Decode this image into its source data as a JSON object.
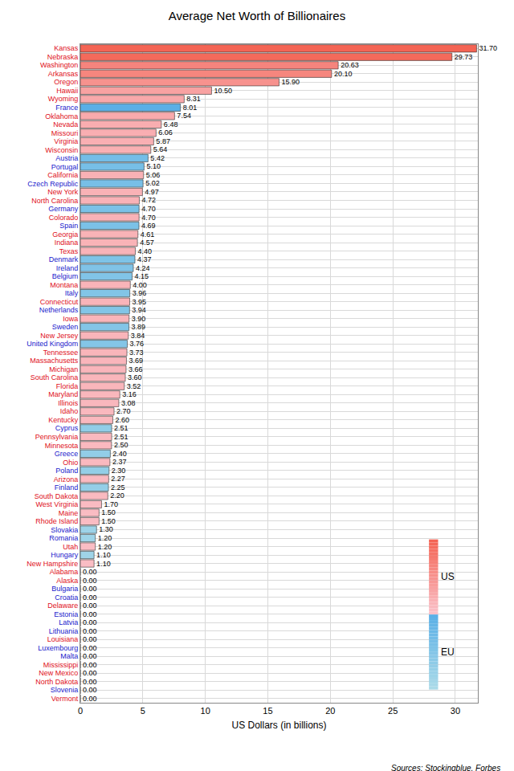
{
  "chart_data": {
    "type": "bar",
    "orientation": "horizontal",
    "title": "Average Net Worth of Billionaires",
    "x_label": "US Dollars (in billions)",
    "caption": "Sources: Stockingblue, Forbes",
    "categories": [
      "Kansas",
      "Nebraska",
      "Washington",
      "Arkansas",
      "Oregon",
      "Hawaii",
      "Wyoming",
      "France",
      "Oklahoma",
      "Nevada",
      "Missouri",
      "Virginia",
      "Wisconsin",
      "Austria",
      "Portugal",
      "California",
      "Czech Republic",
      "New York",
      "North Carolina",
      "Germany",
      "Colorado",
      "Spain",
      "Georgia",
      "Indiana",
      "Texas",
      "Denmark",
      "Ireland",
      "Belgium",
      "Montana",
      "Italy",
      "Connecticut",
      "Netherlands",
      "Iowa",
      "Sweden",
      "New Jersey",
      "United Kingdom",
      "Tennessee",
      "Massachusetts",
      "Michigan",
      "South Carolina",
      "Florida",
      "Maryland",
      "Illinois",
      "Idaho",
      "Kentucky",
      "Cyprus",
      "Pennsylvania",
      "Minnesota",
      "Greece",
      "Ohio",
      "Poland",
      "Arizona",
      "Finland",
      "South Dakota",
      "West Virginia",
      "Maine",
      "Rhode Island",
      "Slovakia",
      "Romania",
      "Utah",
      "Hungary",
      "New Hampshire",
      "Alabama",
      "Alaska",
      "Bulgaria",
      "Croatia",
      "Delaware",
      "Estonia",
      "Latvia",
      "Lithuania",
      "Louisiana",
      "Luxembourg",
      "Malta",
      "Mississippi",
      "New Mexico",
      "North Dakota",
      "Slovenia",
      "Vermont"
    ],
    "series": [
      {
        "name": "US",
        "values": [
          31.7,
          29.73,
          20.63,
          20.1,
          15.9,
          10.5,
          8.31,
          null,
          7.54,
          6.48,
          6.06,
          5.87,
          5.64,
          null,
          null,
          5.06,
          null,
          4.97,
          4.72,
          null,
          4.7,
          null,
          4.61,
          4.57,
          4.4,
          null,
          null,
          null,
          4.0,
          null,
          3.95,
          null,
          3.9,
          null,
          3.84,
          null,
          3.73,
          3.69,
          3.66,
          3.6,
          3.52,
          3.16,
          3.08,
          2.7,
          2.6,
          null,
          2.51,
          2.5,
          null,
          2.37,
          null,
          2.27,
          null,
          2.2,
          1.7,
          1.5,
          1.5,
          null,
          null,
          1.2,
          null,
          1.1,
          0,
          0,
          null,
          null,
          0,
          null,
          null,
          null,
          0,
          null,
          null,
          0,
          0,
          0,
          null,
          0
        ],
        "value_labels": [
          "31.70",
          "29.73",
          "20.63",
          "20.10",
          "15.90",
          "10.50",
          "8.31",
          null,
          "7.54",
          "6.48",
          "6.06",
          "5.87",
          "5.64",
          null,
          null,
          "5.06",
          null,
          "4.97",
          "4.72",
          null,
          "4.70",
          null,
          "4.61",
          "4.57",
          "4.40",
          null,
          null,
          null,
          "4.00",
          null,
          "3.95",
          null,
          "3.90",
          null,
          "3.84",
          null,
          "3.73",
          "3.69",
          "3.66",
          "3.60",
          "3.52",
          "3.16",
          "3.08",
          "2.70",
          "2.60",
          null,
          "2.51",
          "2.50",
          null,
          "2.37",
          null,
          "2.27",
          null,
          "2.20",
          "1.70",
          "1.50",
          "1.50",
          null,
          null,
          "1.20",
          null,
          "1.10",
          "0.00",
          "0.00",
          null,
          null,
          "0.00",
          null,
          null,
          null,
          "0.00",
          null,
          null,
          "0.00",
          "0.00",
          "0.00",
          null,
          "0.00"
        ],
        "colors": [
          "#f46454",
          "#f46a5b",
          "#f6847d",
          "#f6867e",
          "#f7928e",
          "#f8a2a2",
          "#f8a8aa",
          null,
          "#f9aaac",
          "#f9adb0",
          "#f9aeb2",
          "#f9afb3",
          "#f9b0b3",
          null,
          null,
          "#f9b1b5",
          null,
          "#f9b2b6",
          "#f9b2b7",
          null,
          "#f9b2b7",
          null,
          "#f9b3b7",
          "#f9b3b7",
          "#f9b3b8",
          null,
          null,
          null,
          "#f9b4b9",
          null,
          "#f9b4b9",
          null,
          "#f9b5ba",
          null,
          "#f9b5ba",
          null,
          "#f9b5ba",
          "#f9b5bb",
          "#f9b5bb",
          "#f9b6bb",
          "#f9b6bb",
          "#f9b7bc",
          "#f9b7bd",
          "#f9b8be",
          "#fab8be",
          null,
          "#fab9bf",
          "#fab9bf",
          null,
          "#fab9bf",
          null,
          "#fab9c0",
          null,
          "#fabac0",
          "#fabbc2",
          "#fabcc3",
          "#fabcc3",
          null,
          null,
          "#fabdc4",
          null,
          "#fabdc4",
          "#fac0c8",
          "#fac0c8",
          null,
          null,
          "#fac0c8",
          null,
          null,
          null,
          "#fac0c8",
          null,
          null,
          "#fac0c8",
          "#fac0c8",
          "#fac0c8",
          null,
          "#fac0c8"
        ]
      },
      {
        "name": "EU",
        "values": [
          null,
          null,
          null,
          null,
          null,
          null,
          null,
          8.01,
          null,
          null,
          null,
          null,
          null,
          5.42,
          5.1,
          null,
          5.02,
          null,
          null,
          4.7,
          null,
          4.69,
          null,
          null,
          null,
          4.37,
          4.24,
          4.15,
          null,
          3.96,
          null,
          3.94,
          null,
          3.89,
          null,
          3.76,
          null,
          null,
          null,
          null,
          null,
          null,
          null,
          null,
          null,
          2.51,
          null,
          null,
          2.4,
          null,
          2.3,
          null,
          2.25,
          null,
          null,
          null,
          null,
          1.3,
          1.2,
          null,
          1.1,
          null,
          null,
          null,
          0,
          0,
          null,
          0,
          0,
          0,
          null,
          0,
          0,
          null,
          null,
          null,
          0,
          null
        ],
        "value_labels": [
          null,
          null,
          null,
          null,
          null,
          null,
          null,
          "8.01",
          null,
          null,
          null,
          null,
          null,
          "5.42",
          "5.10",
          null,
          "5.02",
          null,
          null,
          "4.70",
          null,
          "4.69",
          null,
          null,
          null,
          "4.37",
          "4.24",
          "4.15",
          null,
          "3.96",
          null,
          "3.94",
          null,
          "3.89",
          null,
          "3.76",
          null,
          null,
          null,
          null,
          null,
          null,
          null,
          null,
          null,
          "2.51",
          null,
          null,
          "2.40",
          null,
          "2.30",
          null,
          "2.25",
          null,
          null,
          null,
          null,
          "1.30",
          "1.20",
          null,
          "1.10",
          null,
          null,
          null,
          "0.00",
          "0.00",
          null,
          "0.00",
          "0.00",
          "0.00",
          null,
          "0.00",
          "0.00",
          null,
          null,
          null,
          "0.00",
          null
        ],
        "colors": [
          null,
          null,
          null,
          null,
          null,
          null,
          null,
          "#5aafe6",
          null,
          null,
          null,
          null,
          null,
          "#74bde7",
          "#77bfe7",
          null,
          "#78bfe7",
          null,
          null,
          "#7bc1e7",
          null,
          "#7bc1e7",
          null,
          null,
          null,
          "#7ec3e7",
          "#80c3e7",
          "#81c4e7",
          null,
          "#82c5e7",
          null,
          "#82c5e7",
          null,
          "#83c5e7",
          null,
          "#84c6e7",
          null,
          null,
          null,
          null,
          null,
          null,
          null,
          null,
          null,
          "#91cde7",
          null,
          null,
          "#92cde7",
          null,
          "#93cee7",
          null,
          "#94cee7",
          null,
          null,
          null,
          null,
          "#9dd3e8",
          "#9ed4e8",
          null,
          "#9fd4e8",
          null,
          null,
          null,
          "#aadae8",
          "#aadae8",
          null,
          "#aadae8",
          "#aadae8",
          "#aadae8",
          null,
          "#aadae8",
          "#aadae8",
          null,
          null,
          null,
          "#aadae8",
          null
        ]
      }
    ],
    "xlim": [
      0,
      31.8
    ],
    "xticks": [
      0,
      5,
      10,
      15,
      20,
      25,
      30
    ],
    "data_labels": true,
    "grid": true,
    "legend": "bottom right"
  }
}
